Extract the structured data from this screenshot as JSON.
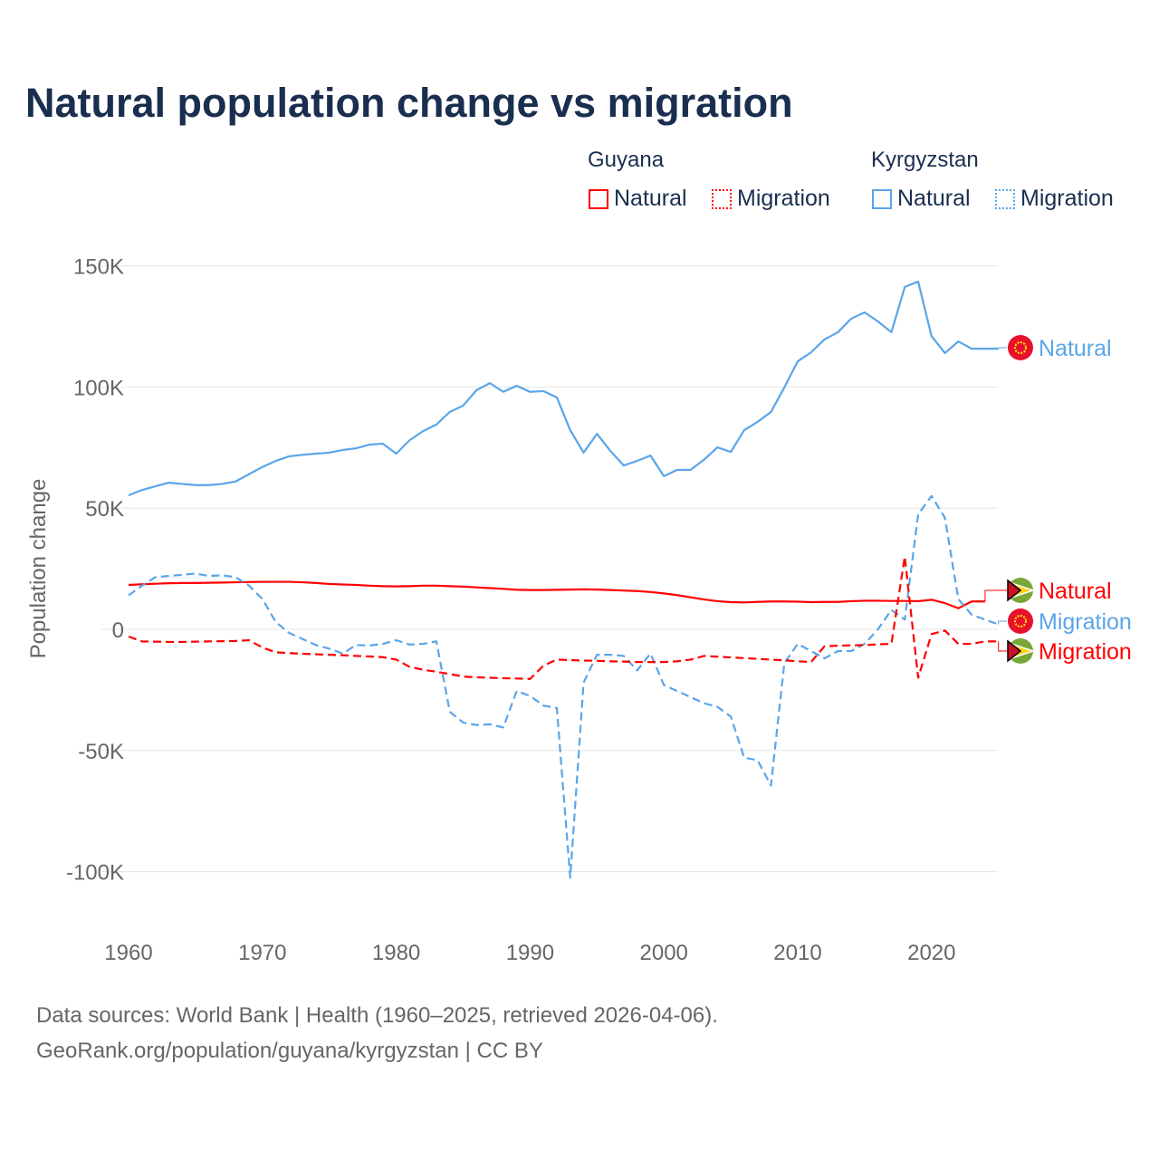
{
  "title": "Natural population change vs migration",
  "legend": {
    "groups": [
      {
        "name": "Guyana",
        "items": [
          {
            "label": "Natural",
            "color": "#ff0000",
            "style": "solid"
          },
          {
            "label": "Migration",
            "color": "#ff0000",
            "style": "dotted"
          }
        ]
      },
      {
        "name": "Kyrgyzstan",
        "items": [
          {
            "label": "Natural",
            "color": "#5aa5e8",
            "style": "solid"
          },
          {
            "label": "Migration",
            "color": "#5aa5e8",
            "style": "dotted"
          }
        ]
      }
    ]
  },
  "source_line1": "Data sources: World Bank | Health (1960–2025, retrieved 2026-04-06).",
  "source_line2": "GeoRank.org/population/guyana/kyrgyzstan | CC BY",
  "chart_data": {
    "type": "line",
    "title": "Natural population change vs migration",
    "xlabel": "",
    "ylabel": "Population change",
    "xlim": [
      1960,
      2025
    ],
    "ylim": [
      -115000,
      160000
    ],
    "yticks": [
      {
        "v": 150000,
        "label": "150K"
      },
      {
        "v": 100000,
        "label": "100K"
      },
      {
        "v": 50000,
        "label": "50K"
      },
      {
        "v": 0,
        "label": "0"
      },
      {
        "v": -50000,
        "label": "-50K"
      },
      {
        "v": -100000,
        "label": "-100K"
      }
    ],
    "xticks": [
      1960,
      1970,
      1980,
      1990,
      2000,
      2010,
      2020
    ],
    "grid": true,
    "series": [
      {
        "name": "Kyrgyzstan Natural",
        "end_label": "Natural",
        "color": "#5aa5e8",
        "dash": false,
        "flag": "kyrgyzstan",
        "start": 1960,
        "values": [
          55.3,
          57.5,
          59,
          60.5,
          60,
          59.5,
          59.5,
          60,
          61,
          64,
          67,
          69.5,
          71.4,
          72,
          72.5,
          72.9,
          74,
          74.7,
          76.2,
          76.6,
          72.5,
          78,
          81.8,
          84.5,
          89.7,
          92.3,
          98.7,
          101.6,
          98,
          100.5,
          98,
          98.3,
          95.7,
          82.2,
          72.9,
          80.7,
          73.6,
          67.6,
          69.5,
          71.7,
          63.2,
          65.8,
          65.8,
          70,
          75.1,
          73.2,
          82.2,
          85.6,
          89.7,
          99.8,
          110.6,
          114.3,
          119.6,
          122.6,
          128.2,
          130.8,
          127,
          122.6,
          141.3,
          143.5,
          121,
          114,
          118.8,
          115.8,
          115.8,
          115.8
        ]
      },
      {
        "name": "Guyana Natural",
        "end_label": "Natural",
        "color": "#ff0000",
        "dash": false,
        "flag": "guyana",
        "start": 1960,
        "values": [
          18.3,
          18.6,
          18.8,
          19,
          19.1,
          19.1,
          19.2,
          19.3,
          19.4,
          19.5,
          19.6,
          19.6,
          19.6,
          19.4,
          19.1,
          18.7,
          18.5,
          18.3,
          18,
          17.8,
          17.7,
          17.8,
          18,
          18,
          17.8,
          17.6,
          17.3,
          17,
          16.7,
          16.3,
          16.2,
          16.2,
          16.3,
          16.4,
          16.5,
          16.4,
          16.2,
          16,
          15.8,
          15.4,
          14.8,
          14.1,
          13.2,
          12.3,
          11.6,
          11.2,
          11.1,
          11.3,
          11.5,
          11.5,
          11.4,
          11.2,
          11.3,
          11.3,
          11.6,
          11.8,
          11.8,
          11.7,
          11.7,
          11.6,
          12.2,
          10.8,
          8.7,
          11.5,
          11.5
        ]
      },
      {
        "name": "Kyrgyzstan Migration",
        "end_label": "Migration",
        "color": "#5aa5e8",
        "dash": true,
        "flag": "kyrgyzstan",
        "start": 1960,
        "values": [
          14,
          18,
          21.5,
          22,
          22.5,
          23,
          22,
          22.3,
          21.5,
          18,
          12.5,
          3,
          -1.5,
          -4,
          -6.5,
          -8,
          -10,
          -6.5,
          -6.7,
          -6,
          -4.5,
          -6.3,
          -6,
          -5,
          -34,
          -38.5,
          -39.5,
          -39.2,
          -40.5,
          -25.5,
          -27.5,
          -31.5,
          -32.5,
          -102.5,
          -22,
          -10.5,
          -10.5,
          -11,
          -17,
          -10,
          -23,
          -25.5,
          -28,
          -30.5,
          -32,
          -36,
          -53,
          -54,
          -64.5,
          -14,
          -6,
          -9,
          -12,
          -9,
          -9,
          -6,
          0,
          8,
          4,
          47.5,
          55,
          46,
          12.5,
          6,
          4,
          2
        ]
      },
      {
        "name": "Guyana Migration",
        "end_label": "Migration",
        "color": "#ff0000",
        "dash": true,
        "flag": "guyana",
        "start": 1960,
        "values": [
          -3,
          -5,
          -5.1,
          -5.2,
          -5.2,
          -5.1,
          -5,
          -4.9,
          -4.8,
          -4.5,
          -7.5,
          -9.5,
          -9.8,
          -10.1,
          -10.3,
          -10.5,
          -10.7,
          -11,
          -11.2,
          -11.5,
          -12.5,
          -15.5,
          -16.7,
          -17.5,
          -18.5,
          -19.5,
          -19.8,
          -20,
          -20.2,
          -20.3,
          -20.5,
          -15,
          -12.5,
          -12.7,
          -12.9,
          -13,
          -13.2,
          -13.3,
          -13.5,
          -13.5,
          -13.5,
          -13.2,
          -12.5,
          -11,
          -11.3,
          -11.6,
          -11.9,
          -12.2,
          -12.5,
          -12.8,
          -13.2,
          -13.5,
          -7,
          -6.8,
          -6.6,
          -6.5,
          -6.2,
          -6,
          30,
          -20,
          -2,
          -0.5,
          -6,
          -6,
          -5,
          -5
        ]
      }
    ]
  }
}
